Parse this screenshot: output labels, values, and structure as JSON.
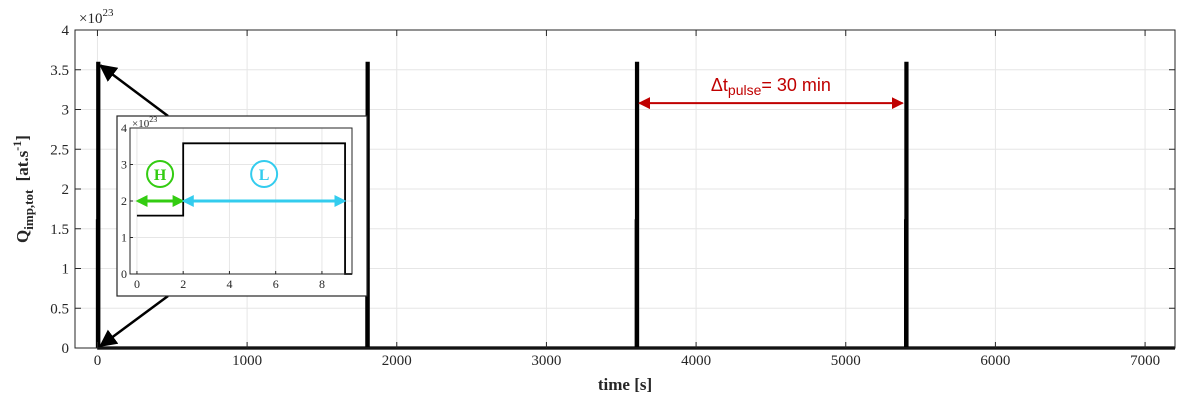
{
  "chart_data": [
    {
      "type": "line",
      "xlabel": "time [s]",
      "ylabel": "Q",
      "ylabel_sub": "imp,tot",
      "ylabel_unit_pre": "[at.s",
      "ylabel_unit_sup": "-1",
      "ylabel_unit_post": "]",
      "y_exponent_prefix": "×10",
      "y_exponent_power": "23",
      "xlim": [
        -150,
        7200
      ],
      "ylim": [
        0,
        4
      ],
      "xticks": [
        0,
        1000,
        2000,
        3000,
        4000,
        5000,
        6000,
        7000
      ],
      "xtick_labels": [
        "0",
        "1000",
        "2000",
        "3000",
        "4000",
        "5000",
        "6000",
        "7000"
      ],
      "yticks": [
        0,
        0.5,
        1,
        1.5,
        2,
        2.5,
        3,
        3.5,
        4
      ],
      "ytick_labels": [
        "0",
        "0.5",
        "1",
        "1.5",
        "2",
        "2.5",
        "3",
        "3.5",
        "4"
      ],
      "grid": true,
      "line_color": "#000000",
      "pulse_starts": [
        0,
        1800,
        3600,
        5400
      ],
      "pulse_duration_s": 9,
      "high_phase_s": 2,
      "pulse_high_value": 3.58,
      "pulse_low_value": 1.6,
      "series": [
        {
          "x": [
            0,
            0,
            2,
            2,
            9,
            9,
            1800,
            1800,
            1802,
            1802,
            1809,
            1809,
            3600,
            3600,
            3602,
            3602,
            3609,
            3609,
            5400,
            5400,
            5402,
            5402,
            5409,
            5409,
            7200
          ],
          "y": [
            0,
            1.6,
            1.6,
            3.58,
            3.58,
            0,
            0,
            1.6,
            1.6,
            3.58,
            3.58,
            0,
            0,
            1.6,
            1.6,
            3.58,
            3.58,
            0,
            0,
            1.6,
            1.6,
            3.58,
            3.58,
            0,
            0
          ]
        }
      ],
      "annotation": {
        "text_main": "Δt",
        "text_sub": "pulse",
        "text_rest": "= 30 min",
        "color": "#c00000",
        "x_from": 3600,
        "x_to": 5400,
        "y": 3.08
      }
    },
    {
      "type": "line",
      "role": "inset",
      "xlim": [
        -0.3,
        9.3
      ],
      "ylim": [
        0,
        4
      ],
      "xticks": [
        0,
        2,
        4,
        6,
        8
      ],
      "xtick_labels": [
        "0",
        "2",
        "4",
        "6",
        "8"
      ],
      "yticks": [
        0,
        1,
        2,
        3,
        4
      ],
      "ytick_labels": [
        "0",
        "1",
        "2",
        "3",
        "4"
      ],
      "y_exponent_prefix": "×10",
      "y_exponent_power": "23",
      "grid": true,
      "series": [
        {
          "x": [
            0,
            2,
            2,
            9,
            9,
            9.3
          ],
          "y": [
            1.6,
            1.6,
            3.58,
            3.58,
            0,
            0
          ]
        }
      ],
      "phase_high": {
        "label": "H",
        "color": "#33cc11",
        "x_from": 0,
        "x_to": 2,
        "y": 2
      },
      "phase_low": {
        "label": "L",
        "color": "#33ccee",
        "x_from": 2,
        "x_to": 9,
        "y": 2
      }
    }
  ]
}
